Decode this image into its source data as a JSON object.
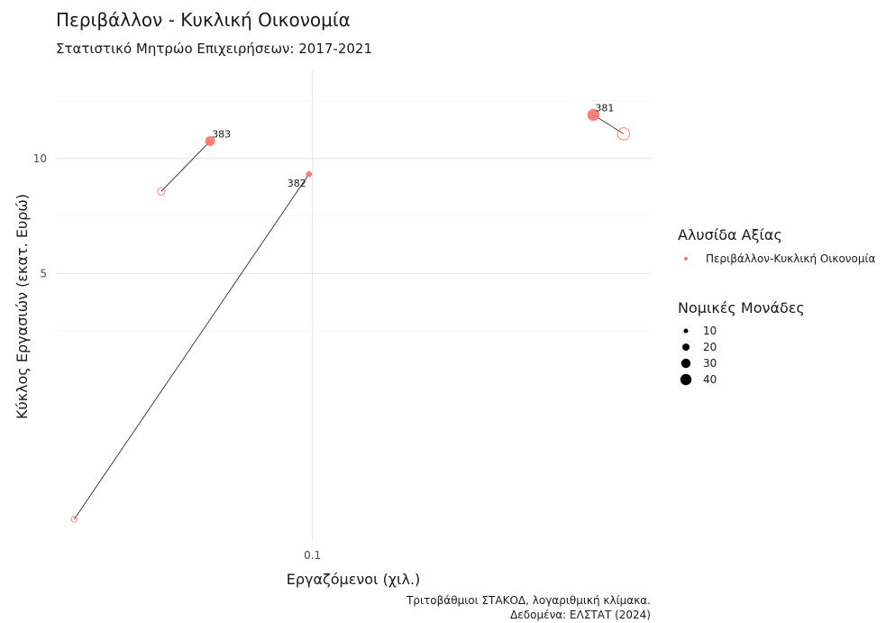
{
  "chart_data": {
    "type": "scatter",
    "title": "Περιβάλλον - Κυκλική Οικονομία",
    "subtitle": "Στατιστικό Μητρώο Επιχειρήσεων: 2017-2021",
    "xlabel": "Εργαζόμενοι (χιλ.)",
    "ylabel": "Κύκλος Εργασιών (εκατ. Ευρώ)",
    "caption_lines": [
      "Τριτοβάθμιοι ΣΤΑΚΟΔ, λογαριθμική κλίμακα.",
      "Δεδομένα: ΕΛΣΤΑΤ (2024)"
    ],
    "x_scale": "log",
    "y_scale": "log",
    "xlim": [
      0.055,
      0.22
    ],
    "ylim": [
      1.0,
      17.0
    ],
    "x_ticks": [
      {
        "value": 0.1,
        "label": "0.1"
      }
    ],
    "y_ticks": [
      {
        "value": 5,
        "label": "5"
      },
      {
        "value": 10,
        "label": "10"
      }
    ],
    "grid": true,
    "color": "#f8766d",
    "points": [
      {
        "code": "383",
        "start": {
          "x": 0.0703,
          "y": 8.2,
          "size": 14
        },
        "end": {
          "x": 0.0788,
          "y": 11.1,
          "size": 26
        }
      },
      {
        "code": "382",
        "start": {
          "x": 0.0574,
          "y": 1.14,
          "size": 8
        },
        "end": {
          "x": 0.0992,
          "y": 9.1,
          "size": 9
        }
      },
      {
        "code": "381",
        "start": {
          "x": 0.2065,
          "y": 11.6,
          "size": 40
        },
        "end": {
          "x": 0.1925,
          "y": 13.0,
          "size": 40
        }
      }
    ],
    "legend": {
      "position": "right",
      "color_title": "Αλυσίδα Αξίας",
      "color_entries": [
        "Περιβάλλον-Κυκλική Οικονομία"
      ],
      "size_title": "Νομικές Μονάδες",
      "size_entries": [
        10,
        20,
        30,
        40
      ]
    }
  }
}
